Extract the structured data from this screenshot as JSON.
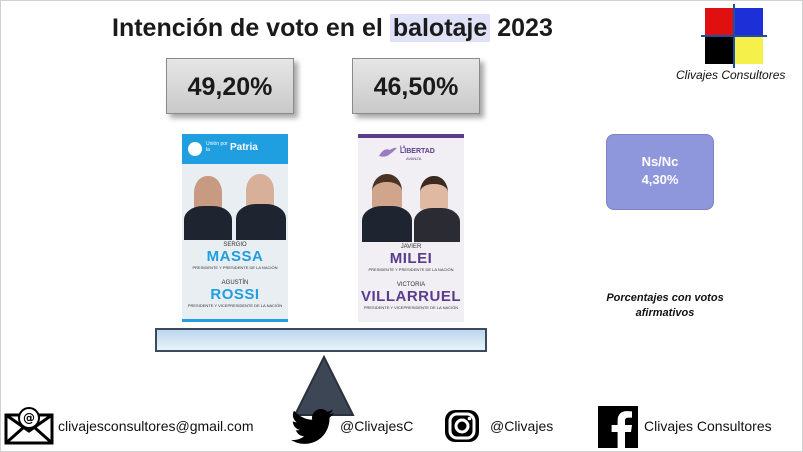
{
  "title": {
    "prefix": "Intención de voto en el ",
    "highlight": "balotaje",
    "suffix": " 2023"
  },
  "brand": {
    "name": "Clivajes Consultores",
    "logo_colors": [
      "#e01010",
      "#1d2fd6",
      "#000000",
      "#f6f04a"
    ]
  },
  "candidates": [
    {
      "percent": "49,20%",
      "party_label": "Patria",
      "party_sub": "Unión por la",
      "first_name": "SERGIO",
      "last_name": "MASSA",
      "role": "PRESIDENTE Y PRESIDENTE DE LA NACIÓN",
      "running_first": "AGUSTÍN",
      "running_last": "ROSSI",
      "running_role": "PRESIDENTE Y VICEPRESIDENTE DE LA NACIÓN",
      "accent": "#1f9ee0"
    },
    {
      "percent": "46,50%",
      "party_label": "LIBERTAD",
      "party_pre": "LA",
      "party_sub": "AVANZA",
      "first_name": "JAVIER",
      "last_name": "MILEI",
      "role": "PRESIDENTE Y PRESIDENTE DE LA NACIÓN",
      "running_first": "VICTORIA",
      "running_last": "VILLARRUEL",
      "running_role": "PRESIDENTE Y VICEPRESIDENTE DE LA NACIÓN",
      "accent": "#5b3c8a"
    }
  ],
  "undecided": {
    "label": "Ns/Nc",
    "percent": "4,30%"
  },
  "note": "Porcentajes con votos afirmativos",
  "footer": {
    "email": "clivajesconsultores@gmail.com",
    "twitter": "@ClivajesC",
    "instagram": "@Clivajes",
    "facebook": "Clivajes Consultores"
  },
  "icons": [
    "mail-icon",
    "twitter-icon",
    "instagram-icon",
    "facebook-icon"
  ]
}
